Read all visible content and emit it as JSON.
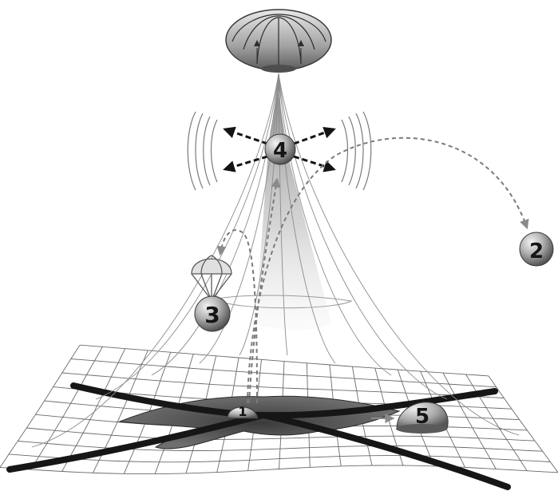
{
  "diagram": {
    "nodes": [
      {
        "id": "1",
        "label": "1"
      },
      {
        "id": "2",
        "label": "2"
      },
      {
        "id": "3",
        "label": "3"
      },
      {
        "id": "4",
        "label": "4"
      },
      {
        "id": "5",
        "label": "5"
      }
    ],
    "colors": {
      "sphere_light": "#e2e2e2",
      "sphere_dark": "#5e5e5e",
      "mesh": "#6a6a6a",
      "curve": "#1a1a1a",
      "dashed": "#7a7a7a",
      "beam": "#9a9a9a"
    },
    "icons": [
      "toroidal-vortex-icon",
      "parachute-icon",
      "sound-wave-icon"
    ]
  }
}
